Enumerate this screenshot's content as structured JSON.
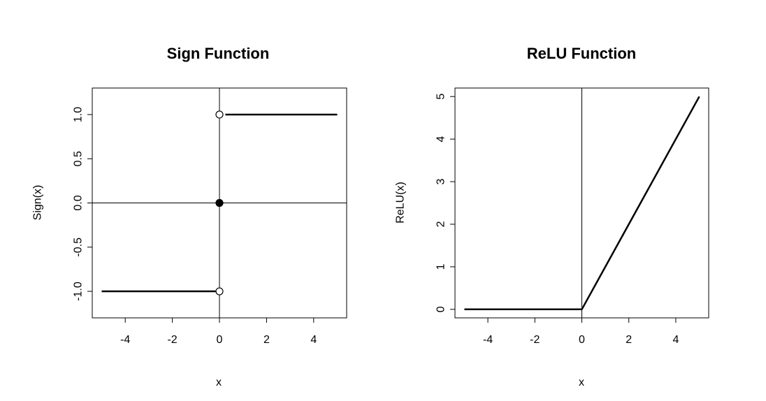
{
  "chart_data": [
    {
      "type": "line",
      "title": "Sign Function",
      "xlabel": "x",
      "ylabel": "Sign(x)",
      "xlim": [
        -5.4,
        5.4
      ],
      "ylim": [
        -1.3,
        1.3
      ],
      "x_ticks": [
        -4,
        -2,
        0,
        2,
        4
      ],
      "y_ticks": [
        -1.0,
        -0.5,
        0.0,
        0.5,
        1.0
      ],
      "x_tick_labels": [
        "-4",
        "-2",
        "0",
        "2",
        "4"
      ],
      "y_tick_labels": [
        "-1.0",
        "-0.5",
        "0.0",
        "0.5",
        "1.0"
      ],
      "reference_lines": {
        "horizontal": 0,
        "vertical": 0
      },
      "series": [
        {
          "x": [
            -5,
            0
          ],
          "y": [
            -1,
            -1
          ]
        },
        {
          "x": [
            0.25,
            5
          ],
          "y": [
            1,
            1
          ]
        }
      ],
      "points": [
        {
          "x": 0,
          "y": 1,
          "filled": false
        },
        {
          "x": 0,
          "y": 0,
          "filled": true
        },
        {
          "x": 0,
          "y": -1,
          "filled": false
        }
      ],
      "grid": false
    },
    {
      "type": "line",
      "title": "ReLU Function",
      "xlabel": "x",
      "ylabel": "ReLU(x)",
      "xlim": [
        -5.4,
        5.4
      ],
      "ylim": [
        -0.2,
        5.2
      ],
      "x_ticks": [
        -4,
        -2,
        0,
        2,
        4
      ],
      "y_ticks": [
        0,
        1,
        2,
        3,
        4,
        5
      ],
      "x_tick_labels": [
        "-4",
        "-2",
        "0",
        "2",
        "4"
      ],
      "y_tick_labels": [
        "0",
        "1",
        "2",
        "3",
        "4",
        "5"
      ],
      "reference_lines": {
        "vertical": 0
      },
      "series": [
        {
          "x": [
            -5,
            0,
            5
          ],
          "y": [
            0,
            0,
            5
          ]
        }
      ],
      "points": [],
      "grid": false
    }
  ]
}
